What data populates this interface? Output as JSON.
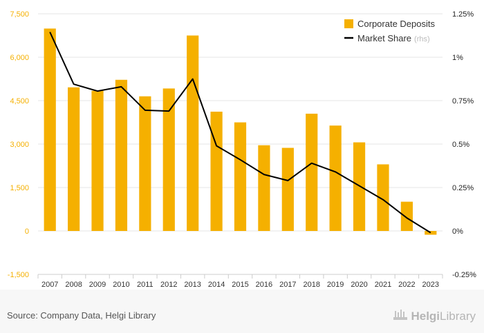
{
  "chart_data": {
    "type": "bar",
    "categories": [
      "2007",
      "2008",
      "2009",
      "2010",
      "2011",
      "2012",
      "2013",
      "2014",
      "2015",
      "2016",
      "2017",
      "2018",
      "2019",
      "2020",
      "2021",
      "2022",
      "2023"
    ],
    "series": [
      {
        "name": "Corporate Deposits",
        "type": "bar",
        "axis": "left",
        "color": "#F5B000",
        "values": [
          6990,
          4960,
          4840,
          5220,
          4650,
          4920,
          6750,
          4120,
          3750,
          2960,
          2870,
          4050,
          3640,
          3060,
          2300,
          1010,
          -130
        ]
      },
      {
        "name": "Market Share",
        "legend_suffix": "(rhs)",
        "type": "line",
        "axis": "right",
        "color": "#000000",
        "values": [
          1.145,
          0.845,
          0.805,
          0.83,
          0.695,
          0.69,
          0.875,
          0.49,
          0.41,
          0.325,
          0.29,
          0.39,
          0.34,
          0.26,
          0.18,
          0.075,
          -0.01
        ]
      }
    ],
    "y_left": {
      "min": -1500,
      "max": 7500,
      "ticks": [
        -1500,
        0,
        1500,
        3000,
        4500,
        6000,
        7500
      ],
      "tick_labels": [
        "-1,500",
        "0",
        "1,500",
        "3,000",
        "4,500",
        "6,000",
        "7,500"
      ],
      "color": "#F5B000"
    },
    "y_right": {
      "min": -0.25,
      "max": 1.25,
      "ticks": [
        -0.25,
        0,
        0.25,
        0.5,
        0.75,
        1,
        1.25
      ],
      "tick_labels": [
        "-0.25%",
        "0%",
        "0.25%",
        "0.5%",
        "0.75%",
        "1%",
        "1.25%"
      ]
    },
    "grid": true,
    "legend_position": "top-right"
  },
  "footer": {
    "source": "Source: Company Data, Helgi Library",
    "brand_part1": "Helgi",
    "brand_part2": "Library"
  }
}
